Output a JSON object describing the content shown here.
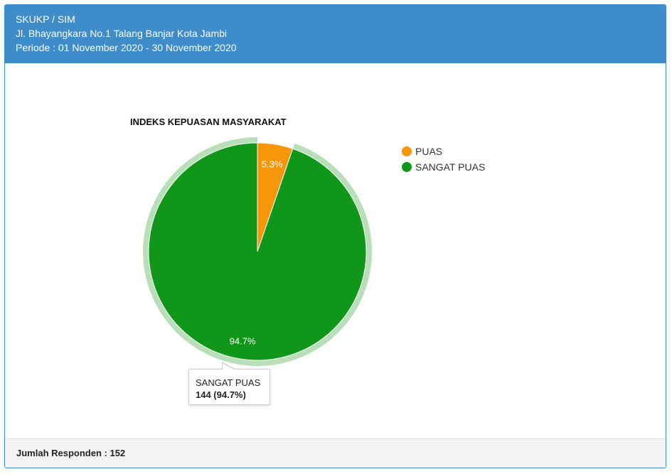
{
  "header": {
    "title": "SKUKP / SIM",
    "address": "Jl. Bhayangkara No.1 Talang Banjar Kota Jambi",
    "period": "Periode : 01 November 2020 - 30 November 2020"
  },
  "footer": {
    "respondents": "Jumlah Responden : 152"
  },
  "tooltip": {
    "label": "SANGAT PUAS",
    "value": "144 (94.7%)"
  },
  "chart_data": {
    "type": "pie",
    "title": "INDEKS KEPUASAN MASYARAKAT",
    "legend_position": "right",
    "slices": [
      {
        "name": "PUAS",
        "value": 8,
        "percent": 5.3,
        "label": "5.3%",
        "color": "#f7960a"
      },
      {
        "name": "SANGAT PUAS",
        "value": 144,
        "percent": 94.7,
        "label": "94.7%",
        "color": "#109618"
      }
    ],
    "highlighted_slice": "SANGAT PUAS",
    "highlight_ring_color": "#b8dfb9"
  }
}
